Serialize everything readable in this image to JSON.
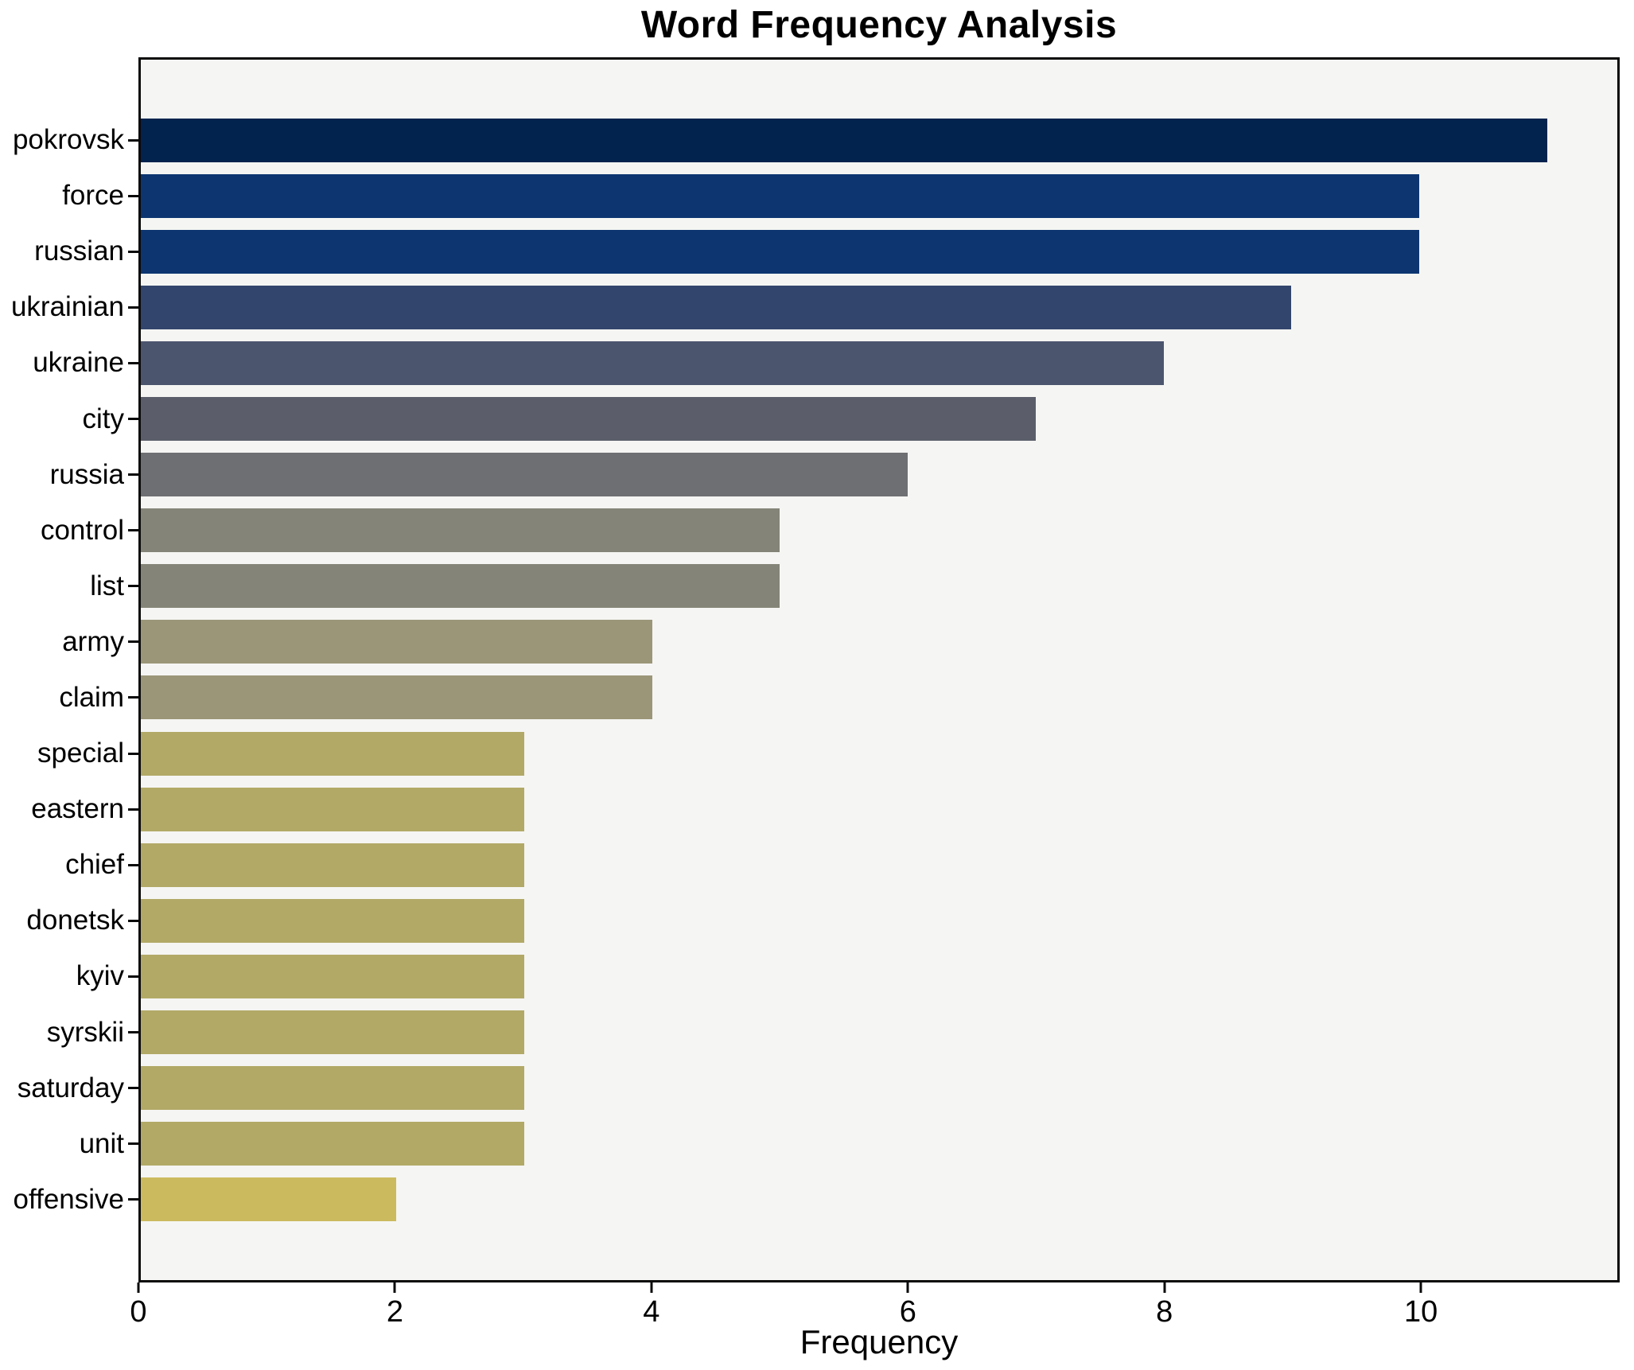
{
  "chart_data": {
    "type": "bar",
    "orientation": "horizontal",
    "title": "Word Frequency Analysis",
    "xlabel": "Frequency",
    "ylabel": "",
    "categories": [
      "pokrovsk",
      "force",
      "russian",
      "ukrainian",
      "ukraine",
      "city",
      "russia",
      "control",
      "list",
      "army",
      "claim",
      "special",
      "eastern",
      "chief",
      "donetsk",
      "kyiv",
      "syrskii",
      "saturday",
      "unit",
      "offensive"
    ],
    "values": [
      11,
      10,
      10,
      9,
      8,
      7,
      6,
      5,
      5,
      4,
      4,
      3,
      3,
      3,
      3,
      3,
      3,
      3,
      3,
      2
    ],
    "bar_colors": [
      "#02234d",
      "#0d3671",
      "#0d3671",
      "#32456c",
      "#4c556e",
      "#5b5e6a",
      "#6e6f72",
      "#848478",
      "#848478",
      "#9b9678",
      "#9b9678",
      "#b2a967",
      "#b2a967",
      "#b2a967",
      "#b2a967",
      "#b2a967",
      "#b2a967",
      "#b2a967",
      "#b2a967",
      "#ccba5e"
    ],
    "xticks": [
      0,
      2,
      4,
      6,
      8,
      10
    ],
    "xlim": [
      0,
      11.55
    ],
    "grid": false,
    "legend": null,
    "bar_fill_ratio": 0.78,
    "plot_background": "#f5f5f3",
    "figure_background": "#ffffff",
    "spine_color": "#0a0a0a",
    "text_color": "#000000"
  }
}
